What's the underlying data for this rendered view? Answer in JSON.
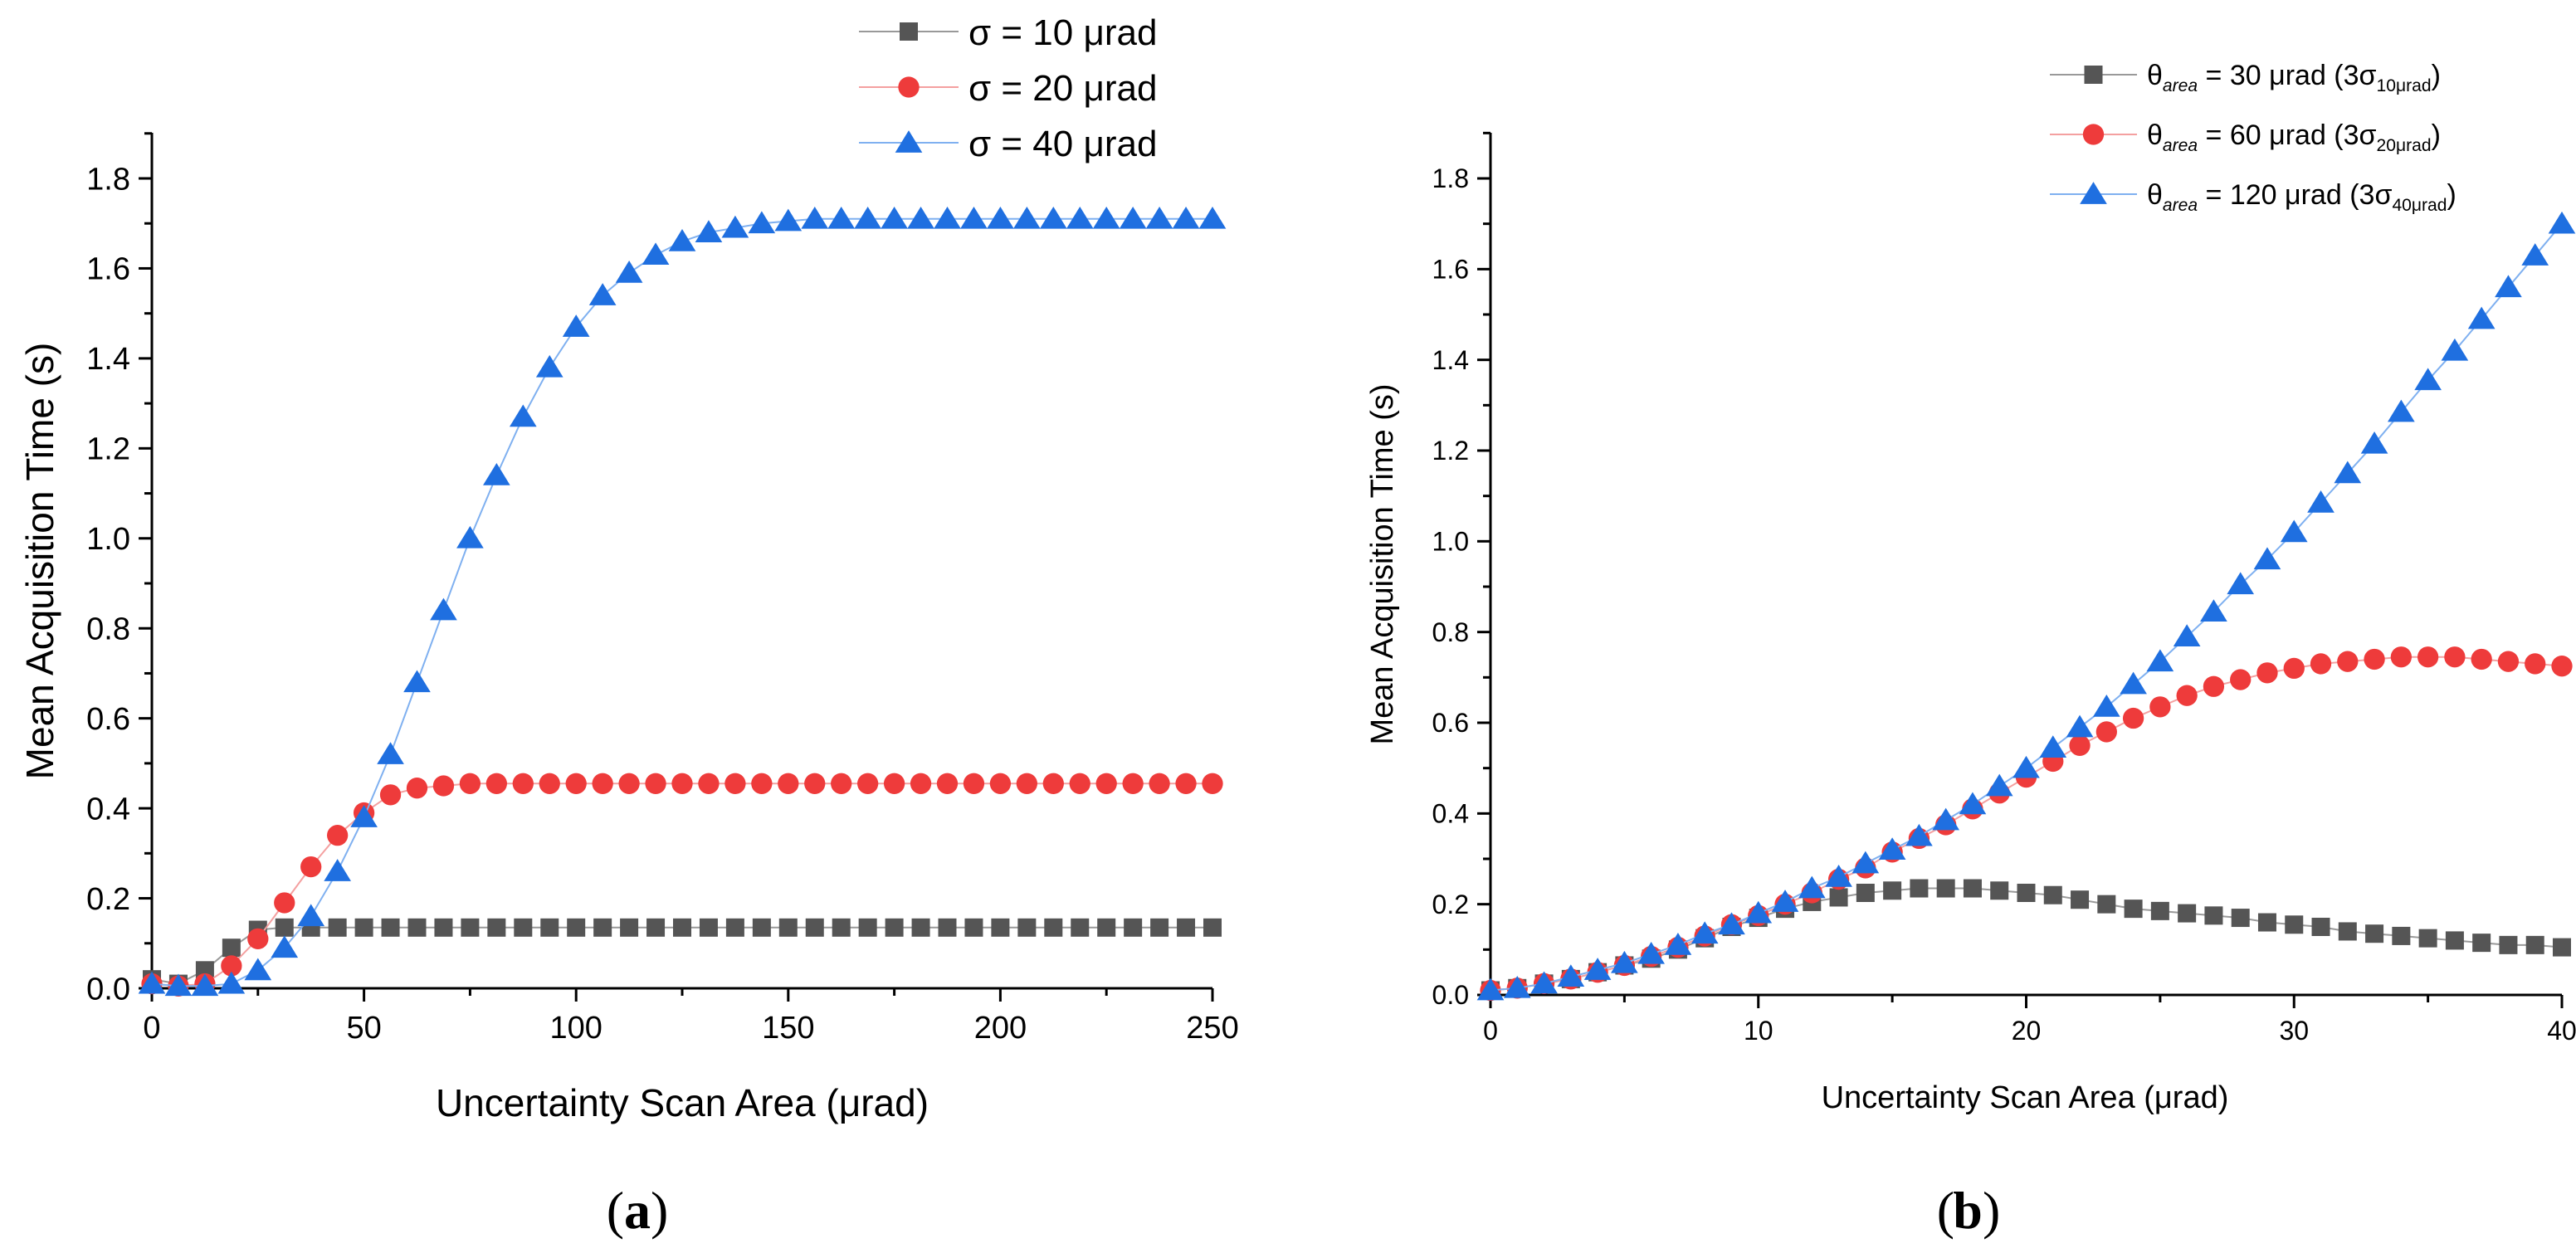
{
  "chart_data": [
    {
      "panel_label": "a",
      "type": "line",
      "xlabel": "Uncertainty Scan Area (μrad)",
      "ylabel": "Mean Acquisition Time (s)",
      "xlim": [
        0,
        250
      ],
      "ylim": [
        0,
        1.9
      ],
      "xticks": [
        0,
        50,
        100,
        150,
        200,
        250
      ],
      "xtick_labels": [
        "0",
        "50",
        "100",
        "150",
        "200",
        "250"
      ],
      "yticks": [
        0.0,
        0.2,
        0.4,
        0.6,
        0.8,
        1.0,
        1.2,
        1.4,
        1.6,
        1.8
      ],
      "ytick_labels": [
        "0.0",
        "0.2",
        "0.4",
        "0.6",
        "0.8",
        "1.0",
        "1.2",
        "1.4",
        "1.6",
        "1.8"
      ],
      "legend_position": "top-right",
      "series": [
        {
          "name": "σ = 10 μrad",
          "marker": "square",
          "color": "#555555",
          "line_color": "#999999",
          "x": [
            0,
            6.25,
            12.5,
            18.75,
            25,
            31.25,
            37.5,
            43.75,
            50,
            56.25,
            62.5,
            68.75,
            75,
            81.25,
            87.5,
            93.75,
            100,
            106.25,
            112.5,
            118.75,
            125,
            131.25,
            137.5,
            143.75,
            150,
            156.25,
            162.5,
            168.75,
            175,
            181.25,
            187.5,
            193.75,
            200,
            206.25,
            212.5,
            218.75,
            225,
            231.25,
            237.5,
            243.75,
            250
          ],
          "y": [
            0.02,
            0.01,
            0.04,
            0.09,
            0.13,
            0.135,
            0.135,
            0.135,
            0.135,
            0.135,
            0.135,
            0.135,
            0.135,
            0.135,
            0.135,
            0.135,
            0.135,
            0.135,
            0.135,
            0.135,
            0.135,
            0.135,
            0.135,
            0.135,
            0.135,
            0.135,
            0.135,
            0.135,
            0.135,
            0.135,
            0.135,
            0.135,
            0.135,
            0.135,
            0.135,
            0.135,
            0.135,
            0.135,
            0.135,
            0.135,
            0.135
          ]
        },
        {
          "name": "σ = 20 μrad",
          "marker": "circle",
          "color": "#ee3b3b",
          "line_color": "#f4a0a0",
          "x": [
            0,
            6.25,
            12.5,
            18.75,
            25,
            31.25,
            37.5,
            43.75,
            50,
            56.25,
            62.5,
            68.75,
            75,
            81.25,
            87.5,
            93.75,
            100,
            106.25,
            112.5,
            118.75,
            125,
            131.25,
            137.5,
            143.75,
            150,
            156.25,
            162.5,
            168.75,
            175,
            181.25,
            187.5,
            193.75,
            200,
            206.25,
            212.5,
            218.75,
            225,
            231.25,
            237.5,
            243.75,
            250
          ],
          "y": [
            0.01,
            0.005,
            0.01,
            0.05,
            0.11,
            0.19,
            0.27,
            0.34,
            0.39,
            0.43,
            0.445,
            0.45,
            0.455,
            0.455,
            0.455,
            0.455,
            0.455,
            0.455,
            0.455,
            0.455,
            0.455,
            0.455,
            0.455,
            0.455,
            0.455,
            0.455,
            0.455,
            0.455,
            0.455,
            0.455,
            0.455,
            0.455,
            0.455,
            0.455,
            0.455,
            0.455,
            0.455,
            0.455,
            0.455,
            0.455,
            0.455
          ]
        },
        {
          "name": "σ = 40 μrad",
          "marker": "triangle",
          "color": "#1f6fe0",
          "line_color": "#7fb0f0",
          "x": [
            0,
            6.25,
            12.5,
            18.75,
            25,
            31.25,
            37.5,
            43.75,
            50,
            56.25,
            62.5,
            68.75,
            75,
            81.25,
            87.5,
            93.75,
            100,
            106.25,
            112.5,
            118.75,
            125,
            131.25,
            137.5,
            143.75,
            150,
            156.25,
            162.5,
            168.75,
            175,
            181.25,
            187.5,
            193.75,
            200,
            206.25,
            212.5,
            218.75,
            225,
            231.25,
            237.5,
            243.75,
            250
          ],
          "y": [
            0.01,
            0.005,
            0.005,
            0.01,
            0.04,
            0.09,
            0.16,
            0.26,
            0.38,
            0.52,
            0.68,
            0.84,
            1.0,
            1.14,
            1.27,
            1.38,
            1.47,
            1.54,
            1.59,
            1.63,
            1.66,
            1.68,
            1.69,
            1.7,
            1.705,
            1.71,
            1.71,
            1.71,
            1.71,
            1.71,
            1.71,
            1.71,
            1.71,
            1.71,
            1.71,
            1.71,
            1.71,
            1.71,
            1.71,
            1.71,
            1.71
          ]
        }
      ]
    },
    {
      "panel_label": "b",
      "type": "line",
      "xlabel": "Uncertainty Scan Area (μrad)",
      "ylabel": "Mean Acquisition Time (s)",
      "xlim": [
        0,
        40
      ],
      "ylim": [
        0,
        1.9
      ],
      "xticks": [
        0,
        10,
        20,
        30,
        40
      ],
      "xtick_labels": [
        "0",
        "10",
        "20",
        "30",
        "40"
      ],
      "yticks": [
        0.0,
        0.2,
        0.4,
        0.6,
        0.8,
        1.0,
        1.2,
        1.4,
        1.6,
        1.8
      ],
      "ytick_labels": [
        "0.0",
        "0.2",
        "0.4",
        "0.6",
        "0.8",
        "1.0",
        "1.2",
        "1.4",
        "1.6",
        "1.8"
      ],
      "legend_position": "top-right",
      "series": [
        {
          "name": "θarea = 30 μrad (3σ10μrad)",
          "legend_theta": "θ",
          "legend_sub": "area",
          "legend_mid": " = 30 μrad (3σ",
          "legend_sigma_sub": "10μrad",
          "legend_end": ")",
          "marker": "square",
          "color": "#555555",
          "line_color": "#999999",
          "x": [
            0,
            1,
            2,
            3,
            4,
            5,
            6,
            7,
            8,
            9,
            10,
            11,
            12,
            13,
            14,
            15,
            16,
            17,
            18,
            19,
            20,
            21,
            22,
            23,
            24,
            25,
            26,
            27,
            28,
            29,
            30,
            31,
            32,
            33,
            34,
            35,
            36,
            37,
            38,
            39,
            40
          ],
          "y": [
            0.01,
            0.015,
            0.025,
            0.035,
            0.05,
            0.065,
            0.08,
            0.1,
            0.125,
            0.15,
            0.17,
            0.19,
            0.205,
            0.215,
            0.225,
            0.23,
            0.235,
            0.235,
            0.235,
            0.23,
            0.225,
            0.22,
            0.21,
            0.2,
            0.19,
            0.185,
            0.18,
            0.175,
            0.17,
            0.16,
            0.155,
            0.15,
            0.14,
            0.135,
            0.13,
            0.125,
            0.12,
            0.115,
            0.11,
            0.11,
            0.105
          ]
        },
        {
          "name": "θarea = 60 μrad (3σ20μrad)",
          "legend_theta": "θ",
          "legend_sub": "area",
          "legend_mid": " = 60 μrad (3σ",
          "legend_sigma_sub": "20μrad",
          "legend_end": ")",
          "marker": "circle",
          "color": "#ee3b3b",
          "line_color": "#f4a0a0",
          "x": [
            0,
            1,
            2,
            3,
            4,
            5,
            6,
            7,
            8,
            9,
            10,
            11,
            12,
            13,
            14,
            15,
            16,
            17,
            18,
            19,
            20,
            21,
            22,
            23,
            24,
            25,
            26,
            27,
            28,
            29,
            30,
            31,
            32,
            33,
            34,
            35,
            36,
            37,
            38,
            39,
            40
          ],
          "y": [
            0.01,
            0.015,
            0.025,
            0.035,
            0.05,
            0.065,
            0.085,
            0.105,
            0.13,
            0.155,
            0.175,
            0.2,
            0.225,
            0.255,
            0.28,
            0.315,
            0.345,
            0.375,
            0.41,
            0.445,
            0.48,
            0.515,
            0.55,
            0.58,
            0.61,
            0.635,
            0.66,
            0.68,
            0.695,
            0.71,
            0.72,
            0.73,
            0.735,
            0.74,
            0.745,
            0.745,
            0.745,
            0.74,
            0.735,
            0.73,
            0.725
          ]
        },
        {
          "name": "θarea = 120 μrad (3σ40μrad)",
          "legend_theta": "θ",
          "legend_sub": "area",
          "legend_mid": " = 120 μrad (3σ",
          "legend_sigma_sub": "40μrad",
          "legend_end": ")",
          "marker": "triangle",
          "color": "#1f6fe0",
          "line_color": "#7fb0f0",
          "x": [
            0,
            1,
            2,
            3,
            4,
            5,
            6,
            7,
            8,
            9,
            10,
            11,
            12,
            13,
            14,
            15,
            16,
            17,
            18,
            19,
            20,
            21,
            22,
            23,
            24,
            25,
            26,
            27,
            28,
            29,
            30,
            31,
            32,
            33,
            34,
            35,
            36,
            37,
            38,
            39,
            40
          ],
          "y": [
            0.01,
            0.015,
            0.025,
            0.04,
            0.055,
            0.07,
            0.09,
            0.11,
            0.135,
            0.155,
            0.18,
            0.205,
            0.235,
            0.26,
            0.29,
            0.32,
            0.35,
            0.385,
            0.42,
            0.46,
            0.5,
            0.545,
            0.59,
            0.635,
            0.685,
            0.735,
            0.79,
            0.845,
            0.905,
            0.96,
            1.02,
            1.085,
            1.15,
            1.215,
            1.285,
            1.355,
            1.42,
            1.49,
            1.56,
            1.63,
            1.7
          ]
        }
      ]
    }
  ]
}
